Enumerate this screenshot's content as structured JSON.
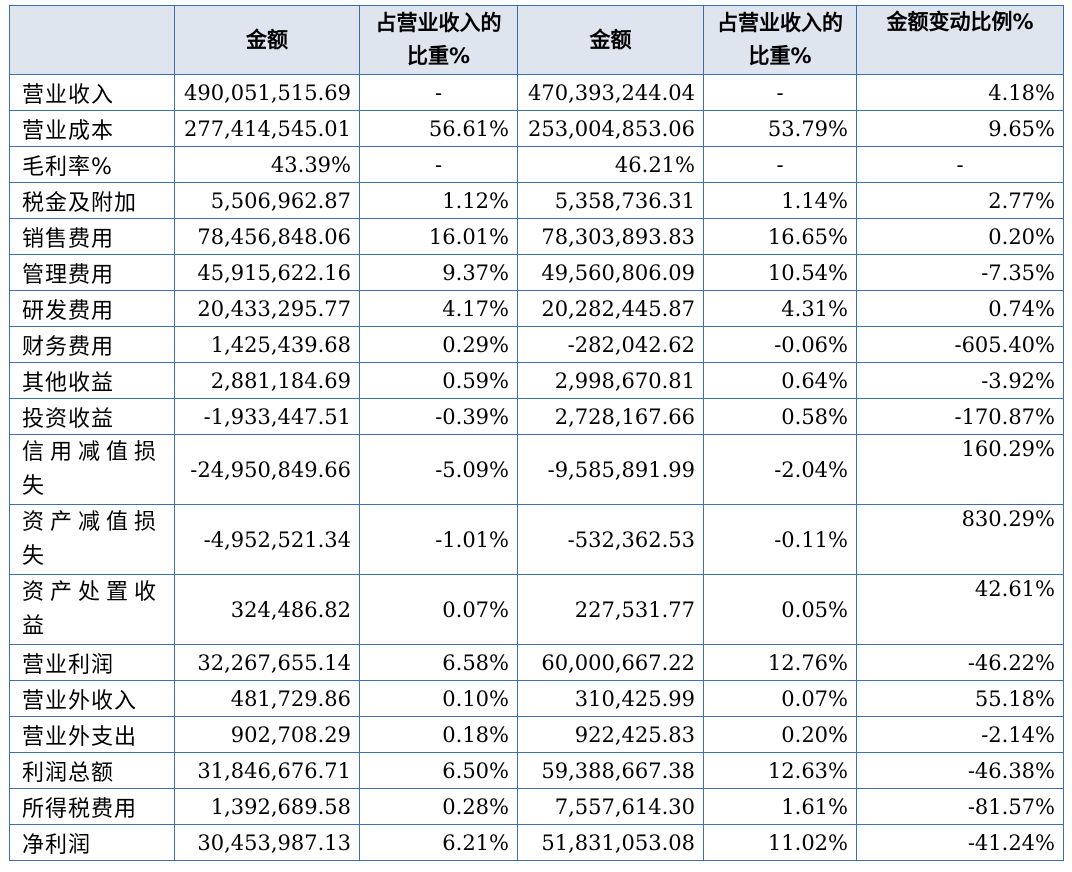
{
  "header": {
    "blank": "",
    "amount_1": "金额",
    "share_1": "占营业收入的比重%",
    "amount_2": "金额",
    "share_2": "占营业收入的比重%",
    "change": "金额变动比例%"
  },
  "rows": [
    {
      "label": "营业收入",
      "amount_1": "490,051,515.69",
      "share_1": "-",
      "amount_2": "470,393,244.04",
      "share_2": "-",
      "change": "4.18%"
    },
    {
      "label": "营业成本",
      "amount_1": "277,414,545.01",
      "share_1": "56.61%",
      "amount_2": "253,004,853.06",
      "share_2": "53.79%",
      "change": "9.65%"
    },
    {
      "label": "毛利率%",
      "amount_1": "43.39%",
      "share_1": "-",
      "amount_2": "46.21%",
      "share_2": "-",
      "change": "-"
    },
    {
      "label": "税金及附加",
      "amount_1": "5,506,962.87",
      "share_1": "1.12%",
      "amount_2": "5,358,736.31",
      "share_2": "1.14%",
      "change": "2.77%"
    },
    {
      "label": "销售费用",
      "amount_1": "78,456,848.06",
      "share_1": "16.01%",
      "amount_2": "78,303,893.83",
      "share_2": "16.65%",
      "change": "0.20%"
    },
    {
      "label": "管理费用",
      "amount_1": "45,915,622.16",
      "share_1": "9.37%",
      "amount_2": "49,560,806.09",
      "share_2": "10.54%",
      "change": "-7.35%"
    },
    {
      "label": "研发费用",
      "amount_1": "20,433,295.77",
      "share_1": "4.17%",
      "amount_2": "20,282,445.87",
      "share_2": "4.31%",
      "change": "0.74%"
    },
    {
      "label": "财务费用",
      "amount_1": "1,425,439.68",
      "share_1": "0.29%",
      "amount_2": "-282,042.62",
      "share_2": "-0.06%",
      "change": "-605.40%"
    },
    {
      "label": "其他收益",
      "amount_1": "2,881,184.69",
      "share_1": "0.59%",
      "amount_2": "2,998,670.81",
      "share_2": "0.64%",
      "change": "-3.92%"
    },
    {
      "label": "投资收益",
      "amount_1": "-1,933,447.51",
      "share_1": "-0.39%",
      "amount_2": "2,728,167.66",
      "share_2": "0.58%",
      "change": "-170.87%"
    },
    {
      "label": "信用减值损失",
      "amount_1": "-24,950,849.66",
      "share_1": "-5.09%",
      "amount_2": "-9,585,891.99",
      "share_2": "-2.04%",
      "change": "160.29%"
    },
    {
      "label": "资产减值损失",
      "amount_1": "-4,952,521.34",
      "share_1": "-1.01%",
      "amount_2": "-532,362.53",
      "share_2": "-0.11%",
      "change": "830.29%"
    },
    {
      "label": "资产处置收益",
      "amount_1": "324,486.82",
      "share_1": "0.07%",
      "amount_2": "227,531.77",
      "share_2": "0.05%",
      "change": "42.61%"
    },
    {
      "label": "营业利润",
      "amount_1": "32,267,655.14",
      "share_1": "6.58%",
      "amount_2": "60,000,667.22",
      "share_2": "12.76%",
      "change": "-46.22%"
    },
    {
      "label": "营业外收入",
      "amount_1": "481,729.86",
      "share_1": "0.10%",
      "amount_2": "310,425.99",
      "share_2": "0.07%",
      "change": "55.18%"
    },
    {
      "label": "营业外支出",
      "amount_1": "902,708.29",
      "share_1": "0.18%",
      "amount_2": "922,425.83",
      "share_2": "0.20%",
      "change": "-2.14%"
    },
    {
      "label": "利润总额",
      "amount_1": "31,846,676.71",
      "share_1": "6.50%",
      "amount_2": "59,388,667.38",
      "share_2": "12.63%",
      "change": "-46.38%"
    },
    {
      "label": "所得税费用",
      "amount_1": "1,392,689.58",
      "share_1": "0.28%",
      "amount_2": "7,557,614.30",
      "share_2": "1.61%",
      "change": "-81.57%"
    },
    {
      "label": "净利润",
      "amount_1": "30,453,987.13",
      "share_1": "6.21%",
      "amount_2": "51,831,053.08",
      "share_2": "11.02%",
      "change": "-41.24%"
    }
  ]
}
